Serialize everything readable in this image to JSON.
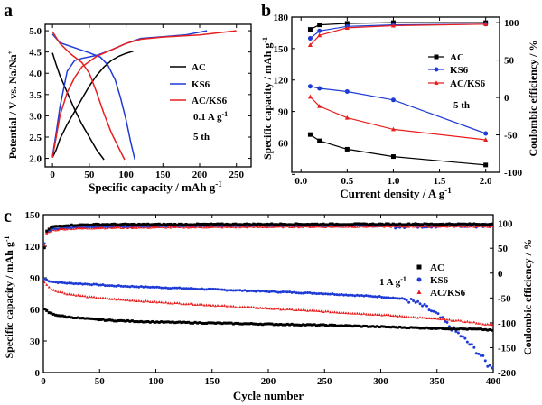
{
  "figure": {
    "description": "Three-panel electrochemistry figure (a, b, c)"
  },
  "colors": {
    "AC": "#000000",
    "KS6": "#1f3bd6",
    "AC/KS6": "#e81e1e"
  },
  "chart_data": [
    {
      "id": "a",
      "panel_label": "a",
      "type": "line",
      "title": "",
      "xlabel": "Specific capacity / mAh g",
      "xlabel_sup": "-1",
      "ylabel": "Potential / V vs. Na/Na",
      "ylabel_sup": "+",
      "xlim": [
        -10,
        270
      ],
      "ylim": [
        1.8,
        5.15
      ],
      "xticks": [
        0,
        50,
        100,
        150,
        200,
        250
      ],
      "yticks": [
        2.0,
        2.5,
        3.0,
        3.5,
        4.0,
        4.5,
        5.0
      ],
      "ytick_labels": [
        "2.0",
        "2.5",
        "3.0",
        "3.5",
        "4.0",
        "4.5",
        "5.0"
      ],
      "legend": [
        "AC",
        "KS6",
        "AC/KS6"
      ],
      "legend_position": "right",
      "annotations": [
        {
          "text": "0.1 A g",
          "sup": "-1"
        },
        {
          "text": "5 th",
          "sup": ""
        }
      ],
      "series": [
        {
          "name": "AC",
          "segment": "charge",
          "points": [
            [
              0,
              2.02
            ],
            [
              5,
              2.2
            ],
            [
              10,
              2.45
            ],
            [
              20,
              2.8
            ],
            [
              30,
              3.1
            ],
            [
              40,
              3.4
            ],
            [
              50,
              3.7
            ],
            [
              60,
              3.95
            ],
            [
              70,
              4.15
            ],
            [
              80,
              4.3
            ],
            [
              90,
              4.4
            ],
            [
              100,
              4.47
            ],
            [
              110,
              4.52
            ]
          ]
        },
        {
          "name": "AC",
          "segment": "discharge",
          "points": [
            [
              0,
              4.48
            ],
            [
              5,
              4.2
            ],
            [
              10,
              3.95
            ],
            [
              20,
              3.55
            ],
            [
              30,
              3.15
            ],
            [
              40,
              2.8
            ],
            [
              50,
              2.5
            ],
            [
              60,
              2.2
            ],
            [
              70,
              1.97
            ]
          ]
        },
        {
          "name": "KS6",
          "segment": "charge",
          "points": [
            [
              0,
              2.05
            ],
            [
              5,
              2.6
            ],
            [
              10,
              3.2
            ],
            [
              20,
              4.05
            ],
            [
              30,
              4.3
            ],
            [
              40,
              4.35
            ],
            [
              60,
              4.42
            ],
            [
              80,
              4.55
            ],
            [
              100,
              4.7
            ],
            [
              120,
              4.82
            ],
            [
              150,
              4.86
            ],
            [
              180,
              4.9
            ],
            [
              210,
              5.0
            ]
          ]
        },
        {
          "name": "KS6",
          "segment": "discharge",
          "points": [
            [
              0,
              4.92
            ],
            [
              10,
              4.72
            ],
            [
              30,
              4.6
            ],
            [
              50,
              4.48
            ],
            [
              65,
              4.38
            ],
            [
              75,
              4.2
            ],
            [
              85,
              3.85
            ],
            [
              92,
              3.45
            ],
            [
              100,
              2.9
            ],
            [
              106,
              2.4
            ],
            [
              112,
              1.97
            ]
          ]
        },
        {
          "name": "AC/KS6",
          "segment": "charge",
          "points": [
            [
              0,
              2.02
            ],
            [
              5,
              2.5
            ],
            [
              10,
              3.0
            ],
            [
              20,
              3.55
            ],
            [
              30,
              3.9
            ],
            [
              40,
              4.15
            ],
            [
              60,
              4.4
            ],
            [
              80,
              4.55
            ],
            [
              100,
              4.7
            ],
            [
              120,
              4.8
            ],
            [
              150,
              4.85
            ],
            [
              200,
              4.9
            ],
            [
              250,
              5.0
            ]
          ]
        },
        {
          "name": "AC/KS6",
          "segment": "discharge",
          "points": [
            [
              0,
              4.98
            ],
            [
              10,
              4.7
            ],
            [
              25,
              4.45
            ],
            [
              40,
              4.25
            ],
            [
              50,
              4.0
            ],
            [
              60,
              3.55
            ],
            [
              70,
              3.05
            ],
            [
              80,
              2.6
            ],
            [
              90,
              2.25
            ],
            [
              98,
              1.97
            ]
          ]
        }
      ]
    },
    {
      "id": "b",
      "panel_label": "b",
      "type": "line",
      "title": "",
      "xlabel": "Current density / A g",
      "xlabel_sup": "-1",
      "ylabel": "Specific capacity / mAh g",
      "ylabel_sup": "-1",
      "y2label": "Coulombic efficiency / %",
      "xlim": [
        -0.1,
        2.15
      ],
      "ylim": [
        32,
        180
      ],
      "y2lim": [
        -100,
        107.4
      ],
      "xticks": [
        0.0,
        0.5,
        1.0,
        1.5,
        2.0
      ],
      "xtick_labels": [
        "0.0",
        "0.5",
        "1.0",
        "1.5",
        "2.0"
      ],
      "yticks": [
        30,
        60,
        90,
        120,
        150,
        180
      ],
      "y2ticks": [
        -100,
        -50,
        0,
        50,
        100
      ],
      "legend": [
        "AC",
        "KS6",
        "AC/KS6"
      ],
      "legend_position": "right",
      "annotations": [
        {
          "text": "5 th",
          "sup": ""
        }
      ],
      "x": [
        0.1,
        0.2,
        0.5,
        1.0,
        2.0
      ],
      "series": [
        {
          "name": "AC",
          "quantity": "coulombic_efficiency",
          "values": [
            91,
            97,
            99,
            100,
            100
          ]
        },
        {
          "name": "KS6",
          "quantity": "coulombic_efficiency",
          "values": [
            79,
            89,
            95,
            97,
            98
          ]
        },
        {
          "name": "AC/KS6",
          "quantity": "coulombic_efficiency",
          "values": [
            70,
            83,
            93,
            96,
            98
          ]
        },
        {
          "name": "AC",
          "quantity": "specific_capacity",
          "values": [
            68,
            62,
            54,
            47,
            39
          ]
        },
        {
          "name": "KS6",
          "quantity": "specific_capacity",
          "values": [
            114,
            112,
            109,
            101,
            69
          ]
        },
        {
          "name": "AC/KS6",
          "quantity": "specific_capacity",
          "values": [
            104,
            95,
            84,
            73,
            63
          ]
        }
      ]
    },
    {
      "id": "c",
      "panel_label": "c",
      "type": "scatter",
      "title": "",
      "xlabel": "Cycle number",
      "ylabel": "Specific capacity / mAh g",
      "ylabel_sup": "-1",
      "y2label": "Coulombic efficiency / %",
      "xlim": [
        0,
        400
      ],
      "ylim": [
        0,
        150
      ],
      "y2lim": [
        -200,
        117.5
      ],
      "xticks": [
        0,
        50,
        100,
        150,
        200,
        250,
        300,
        350,
        400
      ],
      "yticks": [
        0,
        30,
        60,
        90,
        120,
        150
      ],
      "y2ticks": [
        -200,
        -150,
        -100,
        -50,
        0,
        50,
        100
      ],
      "legend": [
        "AC",
        "KS6",
        "AC/KS6"
      ],
      "legend_position": "right",
      "annotations": [
        {
          "text": "1 A g",
          "sup": "-1"
        }
      ],
      "series": [
        {
          "name": "AC",
          "quantity": "coulombic_efficiency",
          "points": [
            [
              1,
              50
            ],
            [
              3,
              85
            ],
            [
              8,
              93
            ],
            [
              20,
              96
            ],
            [
              50,
              98
            ],
            [
              100,
              98
            ],
            [
              200,
              98.5
            ],
            [
              300,
              98.5
            ],
            [
              400,
              98.5
            ]
          ]
        },
        {
          "name": "KS6",
          "quantity": "coulombic_efficiency",
          "points": [
            [
              1,
              60
            ],
            [
              3,
              82
            ],
            [
              8,
              88
            ],
            [
              20,
              91
            ],
            [
              50,
              93
            ],
            [
              100,
              94
            ],
            [
              200,
              95
            ],
            [
              300,
              95
            ],
            [
              330,
              96
            ],
            [
              360,
              96
            ],
            [
              400,
              96
            ]
          ]
        },
        {
          "name": "AC/KS6",
          "quantity": "coulombic_efficiency",
          "points": [
            [
              1,
              55
            ],
            [
              3,
              80
            ],
            [
              8,
              86
            ],
            [
              20,
              89
            ],
            [
              50,
              91
            ],
            [
              100,
              92
            ],
            [
              200,
              93
            ],
            [
              300,
              94
            ],
            [
              400,
              94
            ]
          ]
        },
        {
          "name": "AC",
          "quantity": "specific_capacity",
          "points": [
            [
              1,
              60
            ],
            [
              5,
              57
            ],
            [
              10,
              55
            ],
            [
              20,
              53
            ],
            [
              40,
              51
            ],
            [
              60,
              49.5
            ],
            [
              100,
              48
            ],
            [
              150,
              47
            ],
            [
              200,
              46
            ],
            [
              250,
              45
            ],
            [
              300,
              43.5
            ],
            [
              350,
              42
            ],
            [
              390,
              41
            ],
            [
              400,
              40
            ]
          ]
        },
        {
          "name": "KS6",
          "quantity": "specific_capacity",
          "points": [
            [
              1,
              89
            ],
            [
              5,
              87
            ],
            [
              10,
              86
            ],
            [
              20,
              85
            ],
            [
              40,
              84
            ],
            [
              60,
              82.5
            ],
            [
              100,
              81
            ],
            [
              150,
              79
            ],
            [
              200,
              77
            ],
            [
              250,
              75
            ],
            [
              300,
              72
            ],
            [
              320,
              70
            ],
            [
              330,
              67
            ],
            [
              340,
              62
            ],
            [
              350,
              55
            ],
            [
              360,
              45
            ],
            [
              370,
              36
            ],
            [
              380,
              26
            ],
            [
              390,
              15
            ],
            [
              396,
              6
            ]
          ]
        },
        {
          "name": "AC/KS6",
          "quantity": "specific_capacity",
          "points": [
            [
              1,
              86
            ],
            [
              5,
              81
            ],
            [
              10,
              78
            ],
            [
              20,
              75
            ],
            [
              40,
              72
            ],
            [
              60,
              70
            ],
            [
              100,
              67
            ],
            [
              150,
              64
            ],
            [
              200,
              61
            ],
            [
              250,
              58
            ],
            [
              300,
              55
            ],
            [
              350,
              51
            ],
            [
              380,
              48
            ],
            [
              400,
              45
            ]
          ]
        }
      ]
    }
  ]
}
